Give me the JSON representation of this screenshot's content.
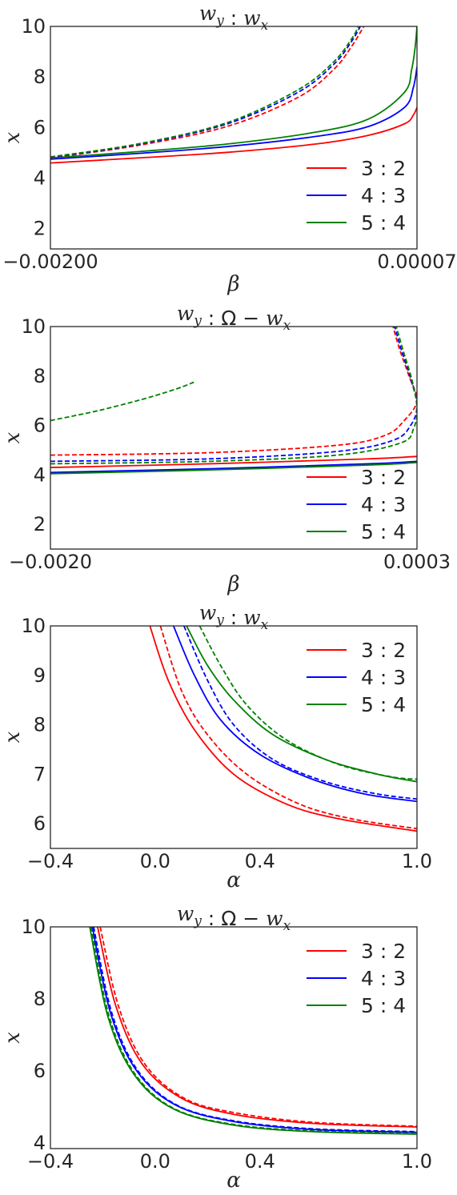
{
  "colors": {
    "red": "#ff0000",
    "blue": "#0000ff",
    "green": "#008000",
    "text": "#262626"
  },
  "legend_labels": [
    "3 : 2",
    "4 : 3",
    "5 : 4"
  ],
  "chart_data": [
    {
      "type": "line",
      "title": "w_y : w_x",
      "xlabel": "β",
      "ylabel": "x",
      "xlim": [
        -0.002,
        7e-05
      ],
      "ylim": [
        1.2,
        10
      ],
      "xticks": [
        "-0.00200",
        "0.00007"
      ],
      "yticks": [
        "2",
        "4",
        "6",
        "8",
        "10"
      ],
      "legend": "bottom-right",
      "grid": false,
      "series": [
        {
          "name": "3 : 2",
          "style": "solid",
          "color": "red",
          "x": [
            -0.002,
            -0.0015,
            -0.001,
            -0.0005,
            -0.0002,
            0.0,
            5e-05,
            7e-05
          ],
          "y": [
            4.6,
            4.8,
            5.02,
            5.35,
            5.7,
            6.15,
            6.5,
            6.8
          ]
        },
        {
          "name": "4 : 3",
          "style": "solid",
          "color": "blue",
          "x": [
            -0.002,
            -0.0015,
            -0.001,
            -0.0005,
            -0.0002,
            0.0,
            5e-05,
            7e-05
          ],
          "y": [
            4.75,
            4.98,
            5.25,
            5.65,
            6.05,
            6.8,
            7.6,
            8.4
          ]
        },
        {
          "name": "5 : 4",
          "style": "solid",
          "color": "green",
          "x": [
            -0.002,
            -0.0015,
            -0.001,
            -0.0005,
            -0.0002,
            0.0,
            4e-05,
            6e-05,
            7e-05
          ],
          "y": [
            4.8,
            5.05,
            5.35,
            5.82,
            6.35,
            7.4,
            8.3,
            9.2,
            10.0
          ]
        },
        {
          "name": "3 : 2 (dashed)",
          "style": "dashed",
          "color": "red",
          "x": [
            -0.002,
            -0.0015,
            -0.001,
            -0.0006,
            -0.0004,
            -0.0003,
            -0.00023
          ],
          "y": [
            4.8,
            5.3,
            6.05,
            7.2,
            8.3,
            9.2,
            10.0
          ]
        },
        {
          "name": "4 : 3 (dashed)",
          "style": "dashed",
          "color": "blue",
          "x": [
            -0.002,
            -0.0015,
            -0.001,
            -0.0006,
            -0.0004,
            -0.0003,
            -0.00025
          ],
          "y": [
            4.82,
            5.34,
            6.15,
            7.4,
            8.5,
            9.4,
            10.0
          ]
        },
        {
          "name": "5 : 4 (dashed)",
          "style": "dashed",
          "color": "green",
          "x": [
            -0.002,
            -0.0015,
            -0.001,
            -0.0006,
            -0.0004,
            -0.0003,
            -0.00026
          ],
          "y": [
            4.84,
            5.36,
            6.2,
            7.5,
            8.6,
            9.5,
            10.0
          ]
        }
      ]
    },
    {
      "type": "line",
      "title": "w_y : Ω − w_x",
      "xlabel": "β",
      "ylabel": "x",
      "xlim": [
        -0.002,
        0.0003
      ],
      "ylim": [
        1.0,
        10
      ],
      "xticks": [
        "-0.0020",
        "0.0003"
      ],
      "yticks": [
        "2",
        "4",
        "6",
        "8",
        "10"
      ],
      "legend": "bottom-right",
      "grid": false,
      "series": [
        {
          "name": "3 : 2",
          "style": "solid",
          "color": "red",
          "x": [
            -0.002,
            -0.001,
            0.0,
            0.0003
          ],
          "y": [
            4.3,
            4.45,
            4.65,
            4.75
          ]
        },
        {
          "name": "4 : 3",
          "style": "solid",
          "color": "blue",
          "x": [
            -0.002,
            -0.001,
            0.0,
            0.0003
          ],
          "y": [
            4.1,
            4.25,
            4.45,
            4.55
          ]
        },
        {
          "name": "5 : 4",
          "style": "solid",
          "color": "green",
          "x": [
            -0.002,
            -0.001,
            0.0,
            0.0003
          ],
          "y": [
            4.05,
            4.2,
            4.4,
            4.5
          ]
        },
        {
          "name": "3 : 2 (dashed)",
          "style": "dashed",
          "color": "red",
          "x": [
            -0.002,
            -0.001,
            -0.0002,
            0.0001,
            0.00022,
            0.0003,
            0.00025,
            0.00019,
            0.00015
          ],
          "y": [
            4.8,
            4.9,
            5.2,
            5.6,
            6.2,
            7.0,
            8.0,
            9.1,
            10.0
          ]
        },
        {
          "name": "4 : 3 (dashed)",
          "style": "dashed",
          "color": "blue",
          "x": [
            -0.002,
            -0.001,
            -0.0002,
            0.00015,
            0.00026,
            0.0003,
            0.00026,
            0.0002,
            0.00016
          ],
          "y": [
            4.55,
            4.65,
            4.95,
            5.4,
            6.0,
            6.8,
            7.9,
            9.1,
            10.0
          ]
        },
        {
          "name": "5 : 4 (dashed)",
          "style": "dashed",
          "color": "green",
          "x": [
            -0.002,
            -0.001,
            -0.0002,
            0.0002,
            0.00028,
            0.0003,
            0.00027,
            0.00021,
            0.00017
          ],
          "y": [
            4.45,
            4.55,
            4.8,
            5.3,
            5.9,
            6.7,
            7.8,
            9.1,
            10.0
          ]
        },
        {
          "name": "upper branch (dashed)",
          "style": "dashed",
          "color": "green",
          "x": [
            -0.002,
            -0.0017,
            -0.0014,
            -0.0012,
            -0.0011
          ],
          "y": [
            6.2,
            6.6,
            7.1,
            7.5,
            7.75
          ]
        }
      ]
    },
    {
      "type": "line",
      "title": "w_y : w_x",
      "xlabel": "α",
      "ylabel": "x",
      "xlim": [
        -0.4,
        1.0
      ],
      "ylim": [
        5.5,
        10
      ],
      "xticks": [
        "-0.4",
        "0.0",
        "0.4",
        "1.0"
      ],
      "yticks": [
        "6",
        "7",
        "8",
        "9",
        "10"
      ],
      "legend": "top-right",
      "grid": false,
      "series": [
        {
          "name": "3 : 2",
          "style": "solid",
          "color": "red",
          "x": [
            -0.02,
            0.05,
            0.15,
            0.3,
            0.5,
            0.7,
            1.0
          ],
          "y": [
            10.0,
            8.9,
            7.9,
            7.0,
            6.4,
            6.1,
            5.85
          ]
        },
        {
          "name": "4 : 3",
          "style": "solid",
          "color": "blue",
          "x": [
            0.07,
            0.15,
            0.25,
            0.4,
            0.6,
            0.8,
            1.0
          ],
          "y": [
            10.0,
            9.0,
            8.1,
            7.4,
            6.9,
            6.6,
            6.45
          ]
        },
        {
          "name": "5 : 4",
          "style": "solid",
          "color": "green",
          "x": [
            0.12,
            0.2,
            0.3,
            0.45,
            0.65,
            0.85,
            1.0
          ],
          "y": [
            10.0,
            9.2,
            8.5,
            7.8,
            7.3,
            7.0,
            6.85
          ]
        },
        {
          "name": "3 : 2 (dashed)",
          "style": "dashed",
          "color": "red",
          "x": [
            0.02,
            0.1,
            0.2,
            0.35,
            0.55,
            0.75,
            1.0
          ],
          "y": [
            10.0,
            8.7,
            7.8,
            7.0,
            6.4,
            6.1,
            5.9
          ]
        },
        {
          "name": "4 : 3 (dashed)",
          "style": "dashed",
          "color": "blue",
          "x": [
            0.11,
            0.2,
            0.3,
            0.45,
            0.65,
            0.85,
            1.0
          ],
          "y": [
            10.0,
            8.9,
            8.0,
            7.3,
            6.85,
            6.6,
            6.5
          ]
        },
        {
          "name": "5 : 4 (dashed)",
          "style": "dashed",
          "color": "green",
          "x": [
            0.17,
            0.25,
            0.35,
            0.5,
            0.7,
            0.9,
            1.0
          ],
          "y": [
            10.0,
            9.2,
            8.4,
            7.7,
            7.2,
            6.95,
            6.9
          ]
        }
      ]
    },
    {
      "type": "line",
      "title": "w_y : Ω − w_x",
      "xlabel": "α",
      "ylabel": "x",
      "xlim": [
        -0.4,
        1.0
      ],
      "ylim": [
        3.85,
        10
      ],
      "xticks": [
        "-0.4",
        "0.0",
        "0.4",
        "1.0"
      ],
      "yticks": [
        "4",
        "6",
        "8",
        "10"
      ],
      "legend": "top-right",
      "grid": false,
      "series": [
        {
          "name": "3 : 2",
          "style": "solid",
          "color": "red",
          "x": [
            -0.22,
            -0.15,
            -0.05,
            0.1,
            0.3,
            0.6,
            1.0
          ],
          "y": [
            10.0,
            7.8,
            6.2,
            5.25,
            4.8,
            4.55,
            4.45
          ]
        },
        {
          "name": "4 : 3",
          "style": "solid",
          "color": "blue",
          "x": [
            -0.24,
            -0.17,
            -0.07,
            0.08,
            0.3,
            0.6,
            1.0
          ],
          "y": [
            10.0,
            7.6,
            6.0,
            5.05,
            4.6,
            4.38,
            4.3
          ]
        },
        {
          "name": "5 : 4",
          "style": "solid",
          "color": "green",
          "x": [
            -0.25,
            -0.18,
            -0.08,
            0.07,
            0.3,
            0.6,
            1.0
          ],
          "y": [
            10.0,
            7.5,
            5.9,
            4.95,
            4.5,
            4.32,
            4.25
          ]
        },
        {
          "name": "3 : 2 (dashed)",
          "style": "dashed",
          "color": "red",
          "x": [
            -0.21,
            -0.14,
            -0.04,
            0.11,
            0.3,
            0.6,
            1.0
          ],
          "y": [
            10.0,
            7.8,
            6.2,
            5.25,
            4.85,
            4.58,
            4.47
          ]
        },
        {
          "name": "4 : 3 (dashed)",
          "style": "dashed",
          "color": "blue",
          "x": [
            -0.235,
            -0.165,
            -0.065,
            0.085,
            0.3,
            0.6,
            1.0
          ],
          "y": [
            10.0,
            7.6,
            6.0,
            5.05,
            4.62,
            4.4,
            4.32
          ]
        },
        {
          "name": "5 : 4 (dashed)",
          "style": "dashed",
          "color": "green",
          "x": [
            -0.245,
            -0.175,
            -0.075,
            0.075,
            0.3,
            0.6,
            1.0
          ],
          "y": [
            10.0,
            7.5,
            5.9,
            4.95,
            4.52,
            4.34,
            4.27
          ]
        }
      ]
    }
  ]
}
